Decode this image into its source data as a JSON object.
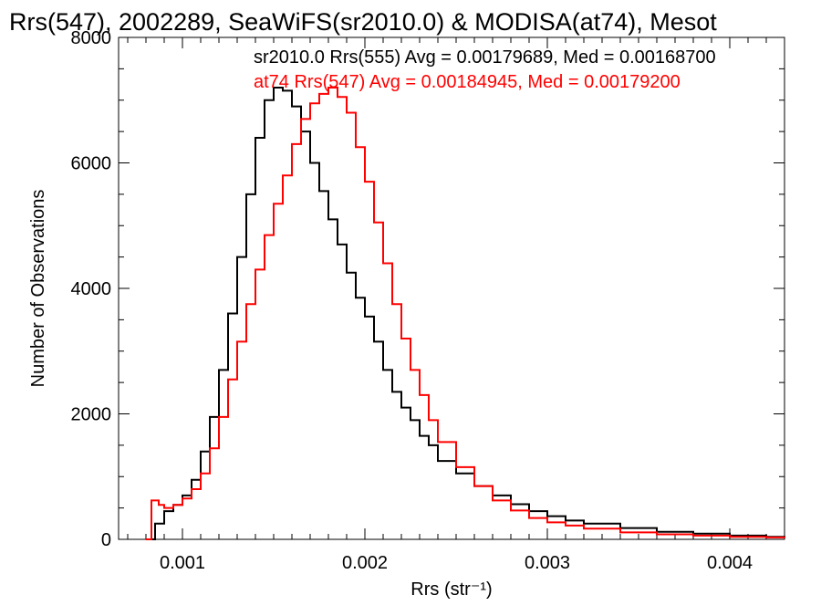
{
  "chart_data": {
    "type": "line",
    "title": "Rrs(547), 2002289, SeaWiFS(sr2010.0) & MODISA(at74), Mesot",
    "xlabel": "Rrs (str⁻¹)",
    "ylabel": "Number of Observations",
    "xlim": [
      0.00065,
      0.0043
    ],
    "ylim": [
      0,
      8000
    ],
    "xticks": [
      0.001,
      0.002,
      0.003,
      0.004
    ],
    "xtick_labels": [
      "0.001",
      "0.002",
      "0.003",
      "0.004"
    ],
    "yticks": [
      0,
      2000,
      4000,
      6000,
      8000
    ],
    "ytick_labels": [
      "0",
      "2000",
      "4000",
      "6000",
      "8000"
    ],
    "grid": false,
    "annotations": [
      {
        "text": "sr2010.0 Rrs(555) Avg = 0.00179689, Med = 0.00168700",
        "color": "#000000"
      },
      {
        "text": "at74 Rrs(547) Avg = 0.00184945, Med = 0.00179200",
        "color": "#ff0000"
      }
    ],
    "series": [
      {
        "color": "#000000",
        "x": [
          0.0008,
          0.00085,
          0.0009,
          0.00095,
          0.001,
          0.00105,
          0.0011,
          0.00115,
          0.0012,
          0.00125,
          0.0013,
          0.00135,
          0.0014,
          0.00145,
          0.0015,
          0.00155,
          0.0016,
          0.00165,
          0.0017,
          0.00175,
          0.0018,
          0.00185,
          0.0019,
          0.00195,
          0.002,
          0.00205,
          0.0021,
          0.00215,
          0.0022,
          0.00225,
          0.0023,
          0.00235,
          0.0024,
          0.0025,
          0.0026,
          0.0027,
          0.0028,
          0.0029,
          0.003,
          0.0031,
          0.0032,
          0.0034,
          0.0036,
          0.0038,
          0.004,
          0.0042,
          0.0043
        ],
        "values": [
          0,
          250,
          450,
          550,
          700,
          950,
          1400,
          1950,
          2700,
          3600,
          4500,
          5500,
          6400,
          7000,
          7200,
          7150,
          6900,
          6500,
          6000,
          5550,
          5100,
          4700,
          4250,
          3850,
          3550,
          3150,
          2700,
          2350,
          2100,
          1900,
          1650,
          1500,
          1250,
          1050,
          850,
          700,
          560,
          450,
          370,
          300,
          250,
          180,
          120,
          90,
          60,
          40,
          20
        ]
      },
      {
        "color": "#ff0000",
        "x": [
          0.0008,
          0.00083,
          0.00087,
          0.0009,
          0.00095,
          0.001,
          0.00105,
          0.0011,
          0.00115,
          0.0012,
          0.00125,
          0.0013,
          0.00135,
          0.0014,
          0.00145,
          0.0015,
          0.00155,
          0.0016,
          0.00165,
          0.0017,
          0.00175,
          0.0018,
          0.00185,
          0.0019,
          0.00195,
          0.002,
          0.00205,
          0.0021,
          0.00215,
          0.0022,
          0.00225,
          0.0023,
          0.00235,
          0.0024,
          0.0025,
          0.0026,
          0.0027,
          0.0028,
          0.0029,
          0.003,
          0.0031,
          0.0032,
          0.0034,
          0.0036,
          0.0038,
          0.004,
          0.0042,
          0.0043
        ],
        "values": [
          0,
          620,
          550,
          500,
          550,
          650,
          800,
          1050,
          1450,
          1950,
          2550,
          3150,
          3750,
          4300,
          4850,
          5350,
          5800,
          6300,
          6700,
          6950,
          7100,
          7200,
          7050,
          6800,
          6250,
          5700,
          5050,
          4400,
          3750,
          3200,
          2700,
          2300,
          1900,
          1550,
          1150,
          850,
          620,
          460,
          340,
          270,
          220,
          170,
          110,
          80,
          60,
          40,
          30,
          20
        ]
      }
    ]
  }
}
